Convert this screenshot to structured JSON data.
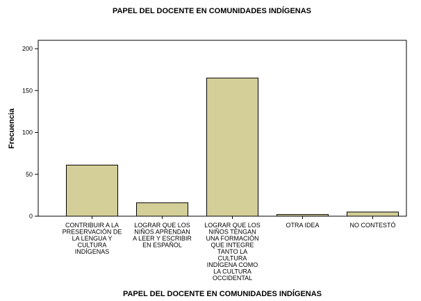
{
  "chart_data": {
    "type": "bar",
    "title": "PAPEL DEL DOCENTE EN COMUNIDADES INDÍGENAS",
    "x_label": "PAPEL DEL DOCENTE EN COMUNIDADES INDÍGENAS",
    "y_label": "Frecuencia",
    "categories": [
      "CONTRIBUIR A LA\nPRESERVACIÓN DE\nLA LENGUA Y\nCULTURA\nINDÍGENAS",
      "LOGRAR QUE LOS\nNIÑOS APRENDAN\nA LEER Y ESCRIBIR\nEN ESPAÑOL",
      "LOGRAR QUE LOS\nNIÑOS TENGAN\nUNA FORMACIÓN\nQUE INTEGRE\nTANTO LA\nCULTURA\nINDÍGENA COMO\nLA CULTURA\nOCCIDENTAL",
      "OTRA IDEA",
      "NO CONTESTÓ"
    ],
    "values": [
      61,
      16,
      165,
      2,
      5
    ],
    "color": "#d4cf98",
    "ylim": [
      0,
      210
    ],
    "yticks": [
      0,
      50,
      100,
      150,
      200
    ],
    "grid": false
  }
}
